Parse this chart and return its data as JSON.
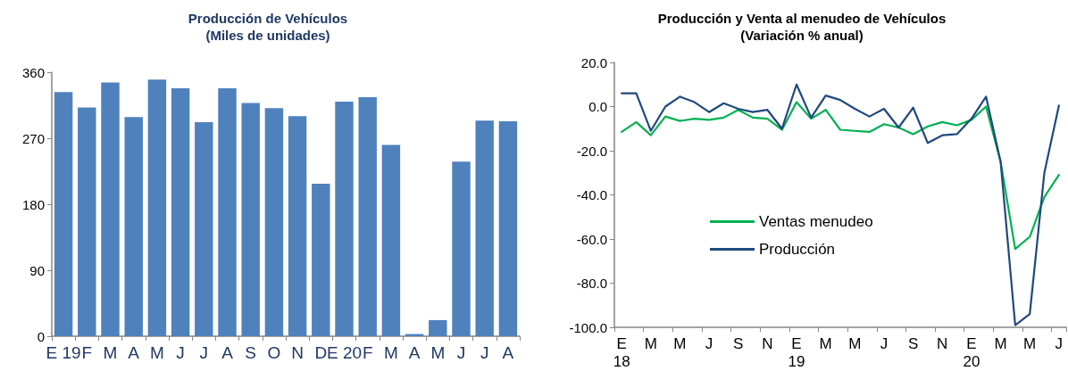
{
  "chart_data": [
    {
      "type": "bar",
      "title": "Producción de Vehículos",
      "subtitle": "(Miles de unidades)",
      "categories": [
        "E 19",
        "F",
        "M",
        "A",
        "M",
        "J",
        "J",
        "A",
        "S",
        "O",
        "N",
        "D",
        "E 20",
        "F",
        "M",
        "A",
        "M",
        "J",
        "J",
        "A"
      ],
      "values": [
        333,
        312,
        346,
        299,
        350,
        338,
        292,
        338,
        318,
        311,
        300,
        208,
        320,
        326,
        261,
        3,
        22,
        238,
        294,
        293
      ],
      "color": "#4f81bd",
      "ylim": [
        0,
        360
      ],
      "yticks": [
        0,
        90,
        180,
        270,
        360
      ],
      "grid": false,
      "legend": false
    },
    {
      "type": "line",
      "title": "Producción y Venta al menudeo de Vehículos",
      "subtitle": "(Variación % anual)",
      "categories": [
        "E\n18",
        null,
        "M",
        null,
        "M",
        null,
        "J",
        null,
        "S",
        null,
        "N",
        null,
        "E\n19",
        null,
        "M",
        null,
        "M",
        null,
        "J",
        null,
        "S",
        null,
        "N",
        null,
        "E\n20",
        null,
        "M",
        null,
        "M",
        null,
        "J"
      ],
      "series": [
        {
          "name": "Ventas menudeo",
          "color": "#00b050",
          "values": [
            -11.5,
            -7,
            -13,
            -4.5,
            -6.5,
            -5.5,
            -6,
            -5,
            -1.5,
            -5,
            -5.5,
            -10.5,
            2,
            -5.5,
            -1.5,
            -10.5,
            -11,
            -11.5,
            -8,
            -9.5,
            -12.5,
            -9,
            -7,
            -8.5,
            -6,
            0,
            -25,
            -64.5,
            -59,
            -41,
            -31
          ]
        },
        {
          "name": "Producción",
          "color": "#1f497d",
          "values": [
            6,
            6,
            -11,
            0,
            4.5,
            2,
            -2.5,
            1.5,
            -1,
            -2.5,
            -1.5,
            -10,
            10,
            -5,
            5,
            3,
            -1,
            -4.5,
            -1,
            -9.5,
            -0.5,
            -16.5,
            -13,
            -12.5,
            -5.5,
            4.5,
            -25,
            -99,
            -94,
            -30,
            0.5
          ]
        }
      ],
      "ylim": [
        -100,
        20
      ],
      "yticks": [
        {
          "value": -100,
          "label": "-100.0"
        },
        {
          "value": -80,
          "label": "-80.0"
        },
        {
          "value": -60,
          "label": "-60.0"
        },
        {
          "value": -40,
          "label": "-40.0"
        },
        {
          "value": -20,
          "label": "-20.0"
        },
        {
          "value": 0,
          "label": "0.0"
        },
        {
          "value": 20,
          "label": "20.0"
        }
      ],
      "grid": false,
      "legend": "center",
      "marker": "none",
      "line_style": "solid"
    }
  ]
}
